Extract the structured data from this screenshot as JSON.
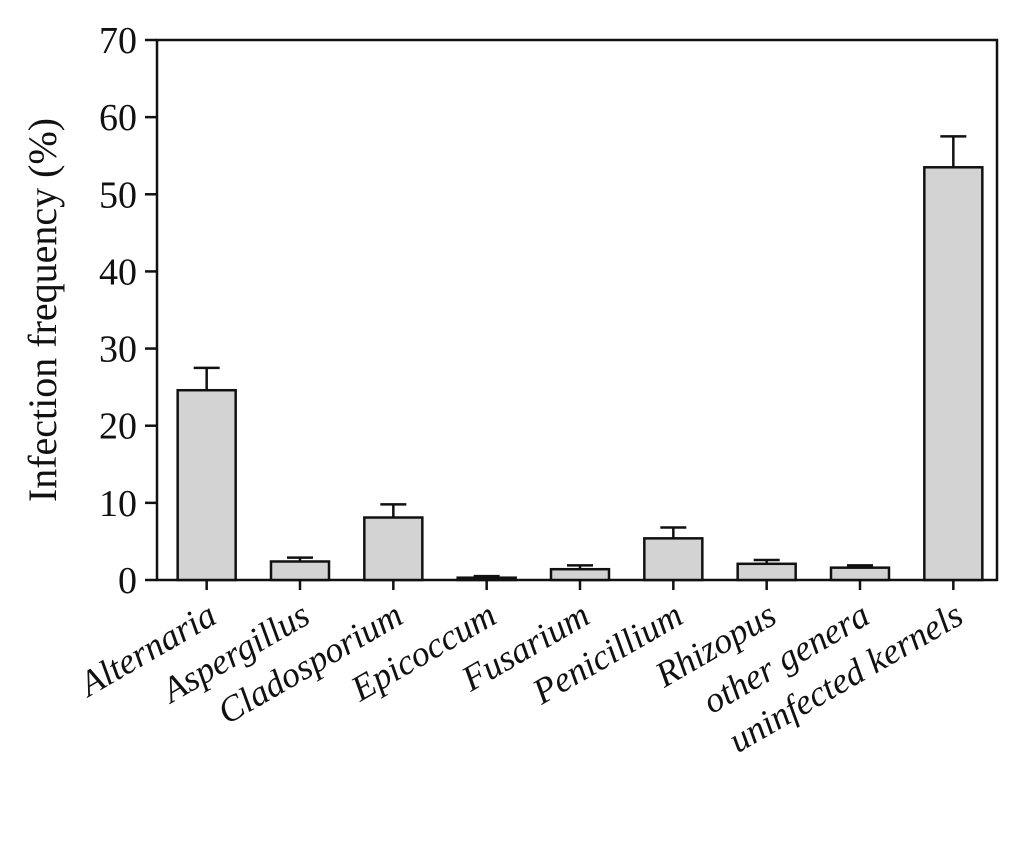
{
  "chart_data": {
    "type": "bar",
    "title": "",
    "xlabel": "",
    "ylabel": "Infection frequency (%)",
    "ylim": [
      0,
      70
    ],
    "yticks": [
      0,
      10,
      20,
      30,
      40,
      50,
      60,
      70
    ],
    "grid": false,
    "categories": [
      "Alternaria",
      "Aspergillus",
      "Cladosporium",
      "Epicoccum",
      "Fusarium",
      "Penicillium",
      "Rhizopus",
      "other genera",
      "uninfected kernels"
    ],
    "series": [
      {
        "values": [
          24.6,
          2.4,
          8.1,
          0.3,
          1.4,
          5.4,
          2.1,
          1.6,
          53.5
        ],
        "error_plus": [
          2.9,
          0.5,
          1.7,
          0.2,
          0.5,
          1.4,
          0.5,
          0.3,
          4.0
        ]
      }
    ],
    "colors": {
      "bar_fill": "#d3d3d3",
      "bar_stroke": "#111111",
      "axis": "#111111"
    }
  }
}
